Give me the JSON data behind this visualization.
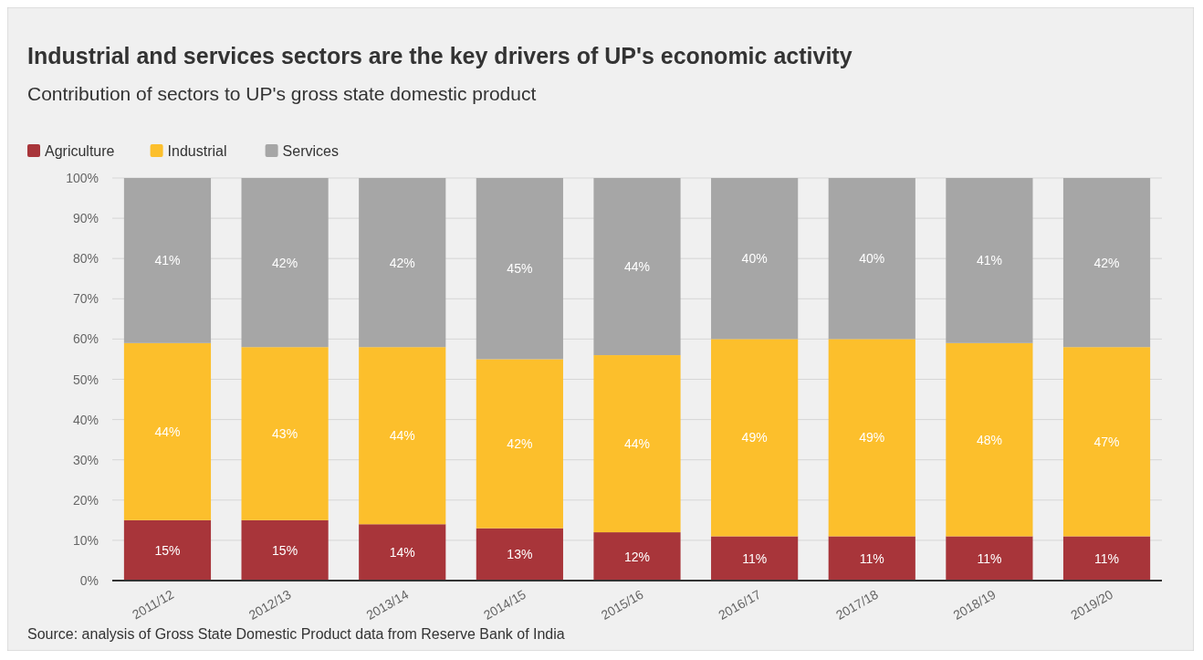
{
  "chart_data": {
    "type": "bar",
    "stacked": true,
    "title": "Industrial and services sectors are the key drivers of UP's economic activity",
    "subtitle": "Contribution of sectors to UP's gross state domestic product",
    "categories": [
      "2011/12",
      "2012/13",
      "2013/14",
      "2014/15",
      "2015/16",
      "2016/17",
      "2017/18",
      "2018/19",
      "2019/20"
    ],
    "series": [
      {
        "name": "Agriculture",
        "color": "#a8353a",
        "values": [
          15,
          15,
          14,
          13,
          12,
          11,
          11,
          11,
          11
        ],
        "value_labels": [
          "15%",
          "15%",
          "14%",
          "13%",
          "12%",
          "11%",
          "11%",
          "11%",
          "11%"
        ]
      },
      {
        "name": "Industrial",
        "color": "#fcbf2c",
        "values": [
          44,
          43,
          44,
          42,
          44,
          49,
          49,
          48,
          47
        ],
        "value_labels": [
          "44%",
          "43%",
          "44%",
          "42%",
          "44%",
          "49%",
          "49%",
          "48%",
          "47%"
        ]
      },
      {
        "name": "Services",
        "color": "#a6a6a6",
        "values": [
          41,
          42,
          42,
          45,
          44,
          40,
          40,
          41,
          42
        ],
        "value_labels": [
          "41%",
          "42%",
          "42%",
          "45%",
          "44%",
          "40%",
          "40%",
          "41%",
          "42%"
        ]
      }
    ],
    "ylim": [
      0,
      100
    ],
    "yticks": [
      {
        "value": 0,
        "label": "0%"
      },
      {
        "value": 10,
        "label": "10%"
      },
      {
        "value": 20,
        "label": "20%"
      },
      {
        "value": 30,
        "label": "30%"
      },
      {
        "value": 40,
        "label": "40%"
      },
      {
        "value": 50,
        "label": "50%"
      },
      {
        "value": 60,
        "label": "60%"
      },
      {
        "value": 70,
        "label": "70%"
      },
      {
        "value": 80,
        "label": "80%"
      },
      {
        "value": 90,
        "label": "90%"
      },
      {
        "value": 100,
        "label": "100%"
      }
    ],
    "grid": "y",
    "legend": "top left",
    "annotations": [
      "Source: analysis of Gross State Domestic Product data from Reserve Bank of India"
    ]
  }
}
